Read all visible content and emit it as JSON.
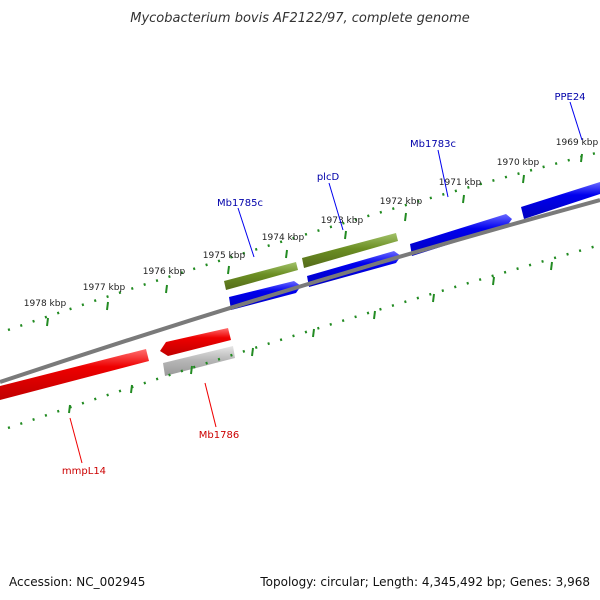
{
  "title": "Mycobacterium bovis AF2122/97, complete genome",
  "footer": {
    "accession": "Accession: NC_002945",
    "summary": "Topology: circular; Length: 4,345,492 bp; Genes: 3,968"
  },
  "scale_labels": [
    "1969 kbp",
    "1970 kbp",
    "1971 kbp",
    "1972 kbp",
    "1973 kbp",
    "1974 kbp",
    "1975 kbp",
    "1976 kbp",
    "1977 kbp",
    "1978 kbp"
  ],
  "genes": {
    "forward": [
      "PPE24",
      "Mb1783c",
      "plcD",
      "Mb1785c"
    ],
    "reverse": [
      "Mb1786",
      "mmpL14"
    ]
  },
  "colors": {
    "forward_gene": "#0000ee",
    "reverse_gene": "#ee0000",
    "cds": "#6b8e23",
    "pseudo": "#b8b8b8",
    "backbone": "#808080",
    "ticks": "#228b22"
  }
}
